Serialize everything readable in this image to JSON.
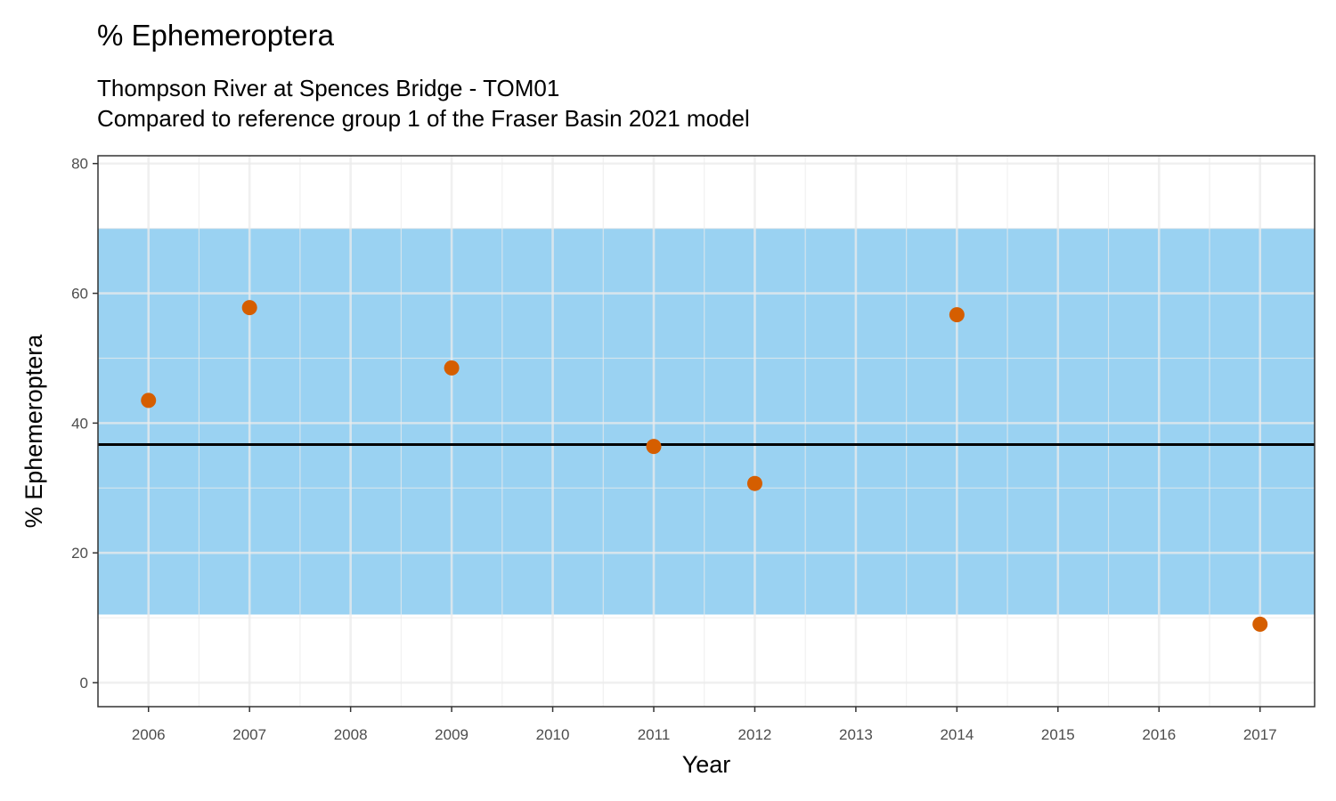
{
  "chart_data": {
    "type": "scatter",
    "title": "% Ephemeroptera",
    "subtitle_lines": [
      "Thompson River at Spences Bridge - TOM01",
      "Compared to reference group 1 of the Fraser Basin 2021 model"
    ],
    "xlabel": "Year",
    "ylabel": "% Ephemeroptera",
    "x_ticks": [
      2006,
      2007,
      2008,
      2009,
      2010,
      2011,
      2012,
      2013,
      2014,
      2015,
      2016,
      2017
    ],
    "y_ticks": [
      0,
      20,
      40,
      60,
      80
    ],
    "xlim": [
      2005.5,
      2017.54
    ],
    "ylim": [
      -3.7,
      81.2
    ],
    "grid": true,
    "reference_band": {
      "low": 10.5,
      "high": 70.0,
      "color": "#56B4E9"
    },
    "reference_line": {
      "value": 36.7,
      "color": "#000000"
    },
    "point_color": "#D55E00",
    "x": [
      2006,
      2007,
      2009,
      2011,
      2012,
      2014,
      2017
    ],
    "y": [
      43.5,
      57.8,
      48.5,
      36.4,
      30.7,
      56.7,
      9.0
    ]
  }
}
